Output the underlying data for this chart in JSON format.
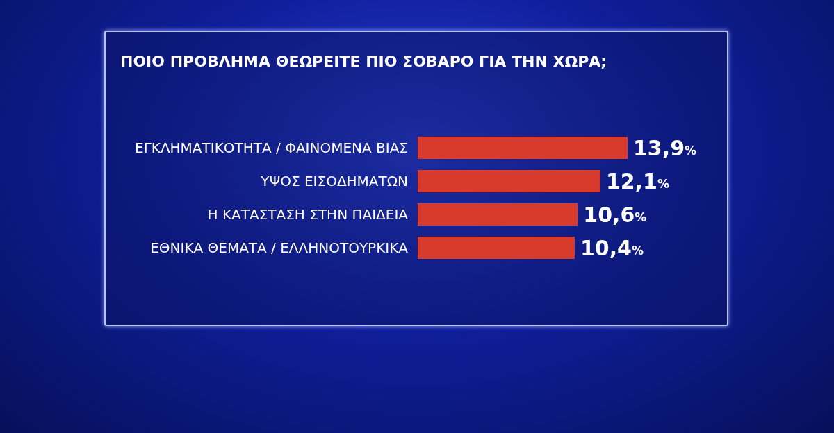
{
  "chart_data": {
    "type": "bar",
    "orientation": "horizontal",
    "title": "ΠΟΙΟ ΠΡΟΒΛΗΜΑ ΘΕΩΡΕΙΤΕ ΠΙΟ ΣΟΒΑΡΟ ΓΙΑ ΤΗΝ ΧΩΡΑ;",
    "categories": [
      "ΕΓΚΛΗΜΑΤΙΚΟΤΗΤΑ / ΦΑΙΝΟΜΕΝΑ ΒΙΑΣ",
      "ΥΨΟΣ ΕΙΣΟΔΗΜΑΤΩΝ",
      "Η ΚΑΤΑΣΤΑΣΗ ΣΤΗΝ ΠΑΙΔΕΙΑ",
      "ΕΘΝΙΚΑ ΘΕΜΑΤΑ / ΕΛΛΗΝΟΤΟΥΡΚΙΚΑ"
    ],
    "values": [
      13.9,
      12.1,
      10.6,
      10.4
    ],
    "value_labels": [
      "13,9%",
      "12,1%",
      "10,6%",
      "10,4%"
    ],
    "color": "#d83a2c",
    "tick_labels": "y"
  }
}
